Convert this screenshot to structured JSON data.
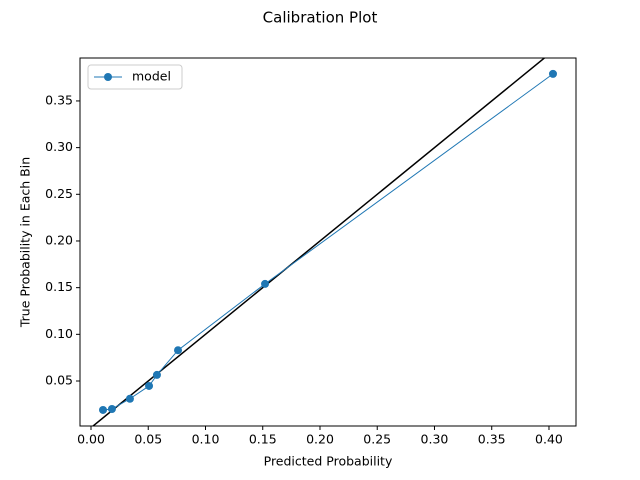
{
  "chart_data": {
    "type": "line",
    "title": "Calibration Plot",
    "x_label": "Predicted Probability",
    "y_label": "True Probability in Each Bin",
    "series": [
      {
        "name": "model",
        "color": "#1f77b4",
        "x": [
          0.0105,
          0.0183,
          0.034,
          0.0507,
          0.0576,
          0.076,
          0.152,
          0.4035
        ],
        "values": [
          0.019,
          0.02,
          0.031,
          0.0447,
          0.0565,
          0.083,
          0.154,
          0.379
        ]
      }
    ],
    "xlim": [
      -0.0096,
      0.4236
    ],
    "ylim": [
      0.0018,
      0.396
    ],
    "xticks": [
      {
        "value": 0,
        "label": "0.00"
      },
      0.05,
      {
        "value": 0.1,
        "label": "0.10"
      },
      0.15,
      {
        "value": 0.2,
        "label": "0.20"
      },
      0.25,
      {
        "value": 0.3,
        "label": "0.30"
      },
      0.35,
      {
        "value": 0.4,
        "label": "0.40"
      }
    ],
    "yticks": [
      0.05,
      {
        "value": 0.1,
        "label": "0.10"
      },
      0.15,
      {
        "value": 0.2,
        "label": "0.20"
      },
      0.25,
      {
        "value": 0.3,
        "label": "0.30"
      },
      0.35
    ],
    "legend": "upper left",
    "reference_color": "#000000"
  }
}
